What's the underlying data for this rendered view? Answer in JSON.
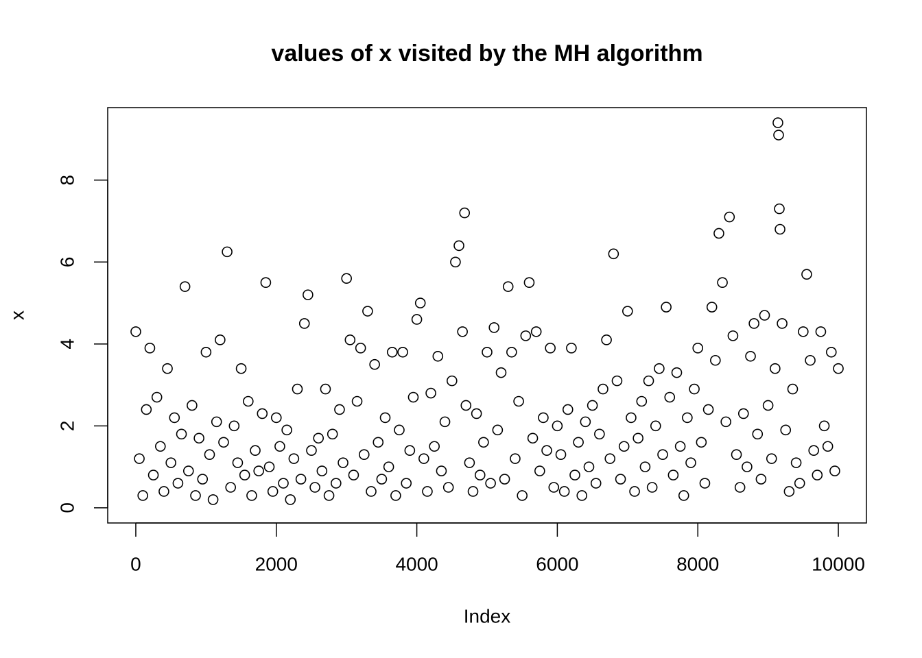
{
  "chart_data": {
    "type": "scatter",
    "title": "values of x visited by the MH algorithm",
    "x_label": "Index",
    "y_label": "x",
    "xlim": [
      -400,
      10400
    ],
    "ylim": [
      -0.37,
      9.77
    ],
    "xticks": [
      0,
      2000,
      4000,
      6000,
      8000,
      10000
    ],
    "yticks": [
      0,
      2,
      4,
      6,
      8
    ],
    "color": "#000000",
    "x": [
      0,
      50,
      100,
      150,
      200,
      250,
      300,
      350,
      400,
      450,
      500,
      550,
      600,
      650,
      700,
      750,
      800,
      850,
      900,
      950,
      1000,
      1050,
      1100,
      1150,
      1200,
      1250,
      1300,
      1350,
      1400,
      1450,
      1500,
      1550,
      1600,
      1650,
      1700,
      1750,
      1800,
      1850,
      1900,
      1950,
      2000,
      2050,
      2100,
      2150,
      2200,
      2250,
      2300,
      2350,
      2400,
      2450,
      2500,
      2550,
      2600,
      2650,
      2700,
      2750,
      2800,
      2850,
      2900,
      2950,
      3000,
      3050,
      3100,
      3150,
      3200,
      3250,
      3300,
      3350,
      3400,
      3450,
      3500,
      3550,
      3600,
      3650,
      3700,
      3750,
      3800,
      3850,
      3900,
      3950,
      4000,
      4050,
      4100,
      4150,
      4200,
      4250,
      4300,
      4350,
      4400,
      4450,
      4500,
      4550,
      4600,
      4650,
      4680,
      4700,
      4750,
      4800,
      4850,
      4900,
      4950,
      5000,
      5050,
      5100,
      5150,
      5200,
      5250,
      5300,
      5350,
      5400,
      5450,
      5500,
      5550,
      5600,
      5650,
      5700,
      5750,
      5800,
      5850,
      5900,
      5950,
      6000,
      6050,
      6100,
      6150,
      6200,
      6250,
      6300,
      6350,
      6400,
      6450,
      6500,
      6550,
      6600,
      6650,
      6700,
      6750,
      6800,
      6850,
      6900,
      6950,
      7000,
      7050,
      7100,
      7150,
      7200,
      7250,
      7300,
      7350,
      7400,
      7450,
      7500,
      7550,
      7600,
      7650,
      7700,
      7750,
      7800,
      7850,
      7900,
      7950,
      8000,
      8050,
      8100,
      8150,
      8200,
      8250,
      8300,
      8350,
      8400,
      8450,
      8500,
      8550,
      8600,
      8650,
      8700,
      8750,
      8800,
      8850,
      8900,
      8950,
      9000,
      9050,
      9100,
      9140,
      9150,
      9160,
      9170,
      9200,
      9250,
      9300,
      9350,
      9400,
      9450,
      9500,
      9550,
      9600,
      9650,
      9700,
      9750,
      9800,
      9850,
      9900,
      9950,
      10000
    ],
    "values": [
      4.3,
      1.2,
      0.3,
      2.4,
      3.9,
      0.8,
      2.7,
      1.5,
      0.4,
      3.4,
      1.1,
      2.2,
      0.6,
      1.8,
      5.4,
      0.9,
      2.5,
      0.3,
      1.7,
      0.7,
      3.8,
      1.3,
      0.2,
      2.1,
      4.1,
      1.6,
      6.25,
      0.5,
      2.0,
      1.1,
      3.4,
      0.8,
      2.6,
      0.3,
      1.4,
      0.9,
      2.3,
      5.5,
      1.0,
      0.4,
      2.2,
      1.5,
      0.6,
      1.9,
      0.2,
      1.2,
      2.9,
      0.7,
      4.5,
      5.2,
      1.4,
      0.5,
      1.7,
      0.9,
      2.9,
      0.3,
      1.8,
      0.6,
      2.4,
      1.1,
      5.6,
      4.1,
      0.8,
      2.6,
      3.9,
      1.3,
      4.8,
      0.4,
      3.5,
      1.6,
      0.7,
      2.2,
      1.0,
      3.8,
      0.3,
      1.9,
      3.8,
      0.6,
      1.4,
      2.7,
      4.6,
      5.0,
      1.2,
      0.4,
      2.8,
      1.5,
      3.7,
      0.9,
      2.1,
      0.5,
      3.1,
      6.0,
      6.4,
      4.3,
      7.2,
      2.5,
      1.1,
      0.4,
      2.3,
      0.8,
      1.6,
      3.8,
      0.6,
      4.4,
      1.9,
      3.3,
      0.7,
      5.4,
      3.8,
      1.2,
      2.6,
      0.3,
      4.2,
      5.5,
      1.7,
      4.3,
      0.9,
      2.2,
      1.4,
      3.9,
      0.5,
      2.0,
      1.3,
      0.4,
      2.4,
      3.9,
      0.8,
      1.6,
      0.3,
      2.1,
      1.0,
      2.5,
      0.6,
      1.8,
      2.9,
      4.1,
      1.2,
      6.2,
      3.1,
      0.7,
      1.5,
      4.8,
      2.2,
      0.4,
      1.7,
      2.6,
      1.0,
      3.1,
      0.5,
      2.0,
      3.4,
      1.3,
      4.9,
      2.7,
      0.8,
      3.3,
      1.5,
      0.3,
      2.2,
      1.1,
      2.9,
      3.9,
      1.6,
      0.6,
      2.4,
      4.9,
      3.6,
      6.7,
      5.5,
      2.1,
      7.1,
      4.2,
      1.3,
      0.5,
      2.3,
      1.0,
      3.7,
      4.5,
      1.8,
      0.7,
      4.7,
      2.5,
      1.2,
      3.4,
      9.4,
      9.1,
      7.3,
      6.8,
      4.5,
      1.9,
      0.4,
      2.9,
      1.1,
      0.6,
      4.3,
      5.7,
      3.6,
      1.4,
      0.8,
      4.3,
      2.0,
      1.5,
      3.8,
      0.9,
      3.4
    ]
  }
}
